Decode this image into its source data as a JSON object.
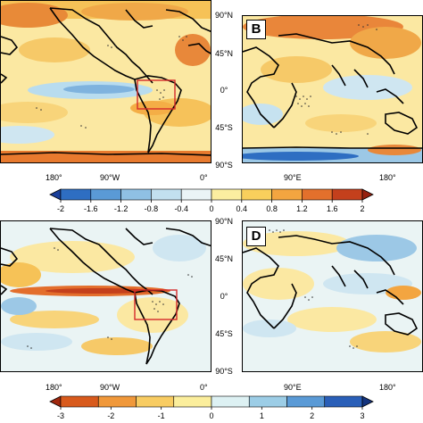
{
  "panels": {
    "b_letter": "B",
    "d_letter": "D"
  },
  "lat_labels": [
    "90°N",
    "45°N",
    "0°",
    "45°S",
    "90°S"
  ],
  "lon_labels_left": [
    "180°",
    "90°W",
    "0°"
  ],
  "lon_labels_right": [
    "90°E",
    "180°"
  ],
  "colorbar_top": {
    "ticks": [
      "-2",
      "-1.6",
      "-1.2",
      "-0.8",
      "-0.4",
      "0",
      "0.4",
      "0.8",
      "1.2",
      "1.6",
      "2"
    ],
    "colors": [
      "#1a3f9a",
      "#2e6ec2",
      "#5a9ad6",
      "#8fc0e4",
      "#c2e0ef",
      "#eaf4f6",
      "#fbeea0",
      "#f8cf5c",
      "#f3a540",
      "#e3702c",
      "#c4401c",
      "#96200e"
    ]
  },
  "colorbar_bottom": {
    "ticks": [
      "-3",
      "-2",
      "-1",
      "0",
      "1",
      "2",
      "3"
    ],
    "colors": [
      "#a0280e",
      "#d85a1c",
      "#f0983a",
      "#f8cc62",
      "#fbee9c",
      "#ddf1f3",
      "#9ccde6",
      "#5a9ad6",
      "#2a5fb8",
      "#14347e"
    ]
  },
  "colors": {
    "box": "#d42a2a",
    "land_outline": "#000000"
  }
}
